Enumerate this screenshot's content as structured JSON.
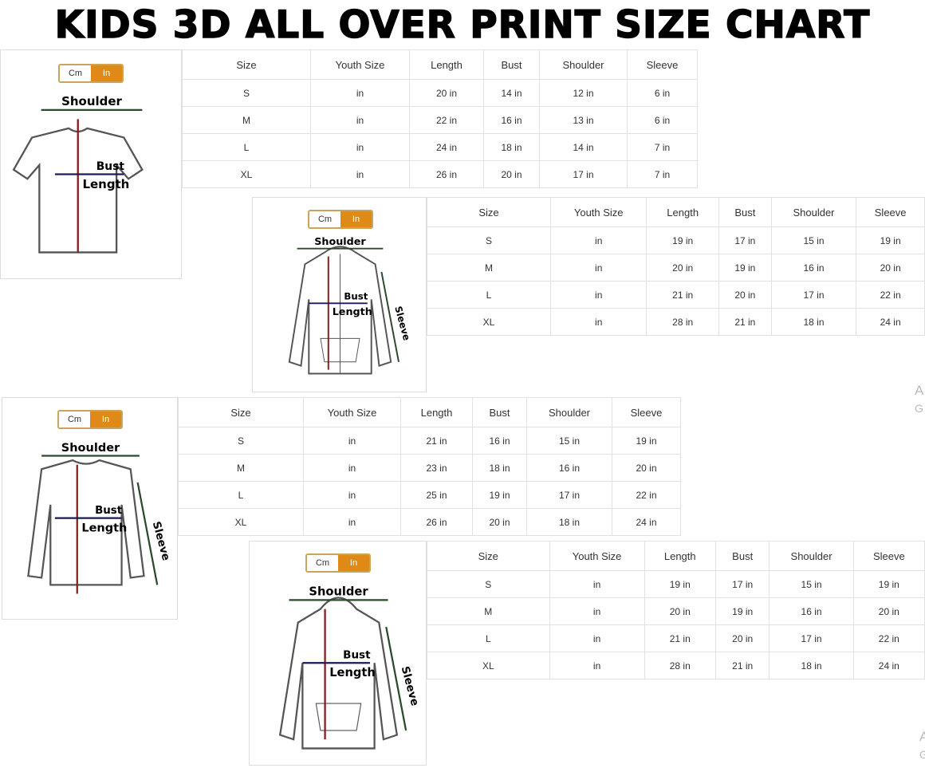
{
  "title": "KIDS 3D ALL OVER PRINT SIZE CHART",
  "toggle": {
    "cm": "Cm",
    "in": "In",
    "active": "In",
    "accent": "#df8a16"
  },
  "labels": {
    "shoulder": "Shoulder",
    "bust": "Bust",
    "length": "Length",
    "sleeve": "Sleeve"
  },
  "headers": [
    "Size",
    "Youth Size",
    "Length",
    "Bust",
    "Shoulder",
    "Sleeve"
  ],
  "panels": [
    {
      "garment": "t-shirt-icon",
      "rows": [
        [
          "S",
          "in",
          "20 in",
          "14 in",
          "12 in",
          "6 in"
        ],
        [
          "M",
          "in",
          "22 in",
          "16 in",
          "13 in",
          "6 in"
        ],
        [
          "L",
          "in",
          "24 in",
          "18 in",
          "14 in",
          "7 in"
        ],
        [
          "XL",
          "in",
          "26 in",
          "20 in",
          "17 in",
          "7 in"
        ]
      ]
    },
    {
      "garment": "zip-hoodie-icon",
      "rows": [
        [
          "S",
          "in",
          "19 in",
          "17 in",
          "15 in",
          "19 in"
        ],
        [
          "M",
          "in",
          "20 in",
          "19 in",
          "16 in",
          "20 in"
        ],
        [
          "L",
          "in",
          "21 in",
          "20 in",
          "17 in",
          "22 in"
        ],
        [
          "XL",
          "in",
          "28 in",
          "21 in",
          "18 in",
          "24 in"
        ]
      ]
    },
    {
      "garment": "long-sleeve-icon",
      "rows": [
        [
          "S",
          "in",
          "21 in",
          "16 in",
          "15 in",
          "19 in"
        ],
        [
          "M",
          "in",
          "23 in",
          "18 in",
          "16 in",
          "20 in"
        ],
        [
          "L",
          "in",
          "25 in",
          "19 in",
          "17 in",
          "22 in"
        ],
        [
          "XL",
          "in",
          "26 in",
          "20 in",
          "18 in",
          "24 in"
        ]
      ]
    },
    {
      "garment": "pullover-hoodie-icon",
      "rows": [
        [
          "S",
          "in",
          "19 in",
          "17 in",
          "15 in",
          "19 in"
        ],
        [
          "M",
          "in",
          "20 in",
          "19 in",
          "16 in",
          "20 in"
        ],
        [
          "L",
          "in",
          "21 in",
          "20 in",
          "17 in",
          "22 in"
        ],
        [
          "XL",
          "in",
          "28 in",
          "21 in",
          "18 in",
          "24 in"
        ]
      ]
    }
  ],
  "watermark": [
    "A",
    "G"
  ]
}
